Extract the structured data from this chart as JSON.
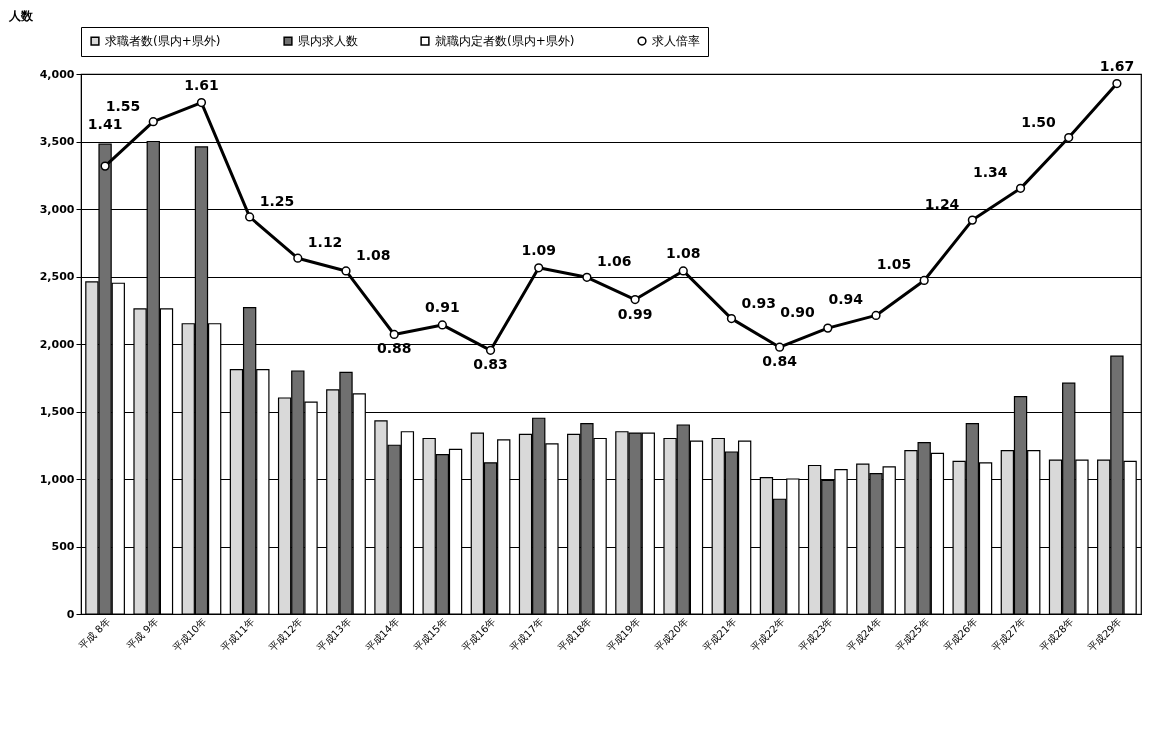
{
  "chart_data": {
    "type": "bar",
    "ylabel": "人数",
    "categories": [
      "平成 8年",
      "平成 9年",
      "平成10年",
      "平成11年",
      "平成12年",
      "平成13年",
      "平成14年",
      "平成15年",
      "平成16年",
      "平成17年",
      "平成18年",
      "平成19年",
      "平成20年",
      "平成21年",
      "平成22年",
      "平成23年",
      "平成24年",
      "平成25年",
      "平成26年",
      "平成27年",
      "平成28年",
      "平成29年"
    ],
    "series": [
      {
        "name": "求職者数(県内+県外)",
        "color": "#d9d9d9",
        "values": [
          2460,
          2260,
          2150,
          1810,
          1600,
          1660,
          1430,
          1300,
          1340,
          1330,
          1330,
          1350,
          1300,
          1300,
          1010,
          1100,
          1110,
          1210,
          1130,
          1210,
          1140,
          1140
        ]
      },
      {
        "name": "県内求人数",
        "color": "#707070",
        "values": [
          3480,
          3500,
          3460,
          2270,
          1800,
          1790,
          1250,
          1180,
          1120,
          1450,
          1410,
          1340,
          1400,
          1200,
          850,
          990,
          1040,
          1270,
          1410,
          1610,
          1710,
          1910
        ]
      },
      {
        "name": "就職内定者数(県内+県外)",
        "color": "#ffffff",
        "values": [
          2450,
          2260,
          2150,
          1810,
          1570,
          1630,
          1350,
          1220,
          1290,
          1260,
          1300,
          1340,
          1280,
          1280,
          1000,
          1070,
          1090,
          1190,
          1120,
          1210,
          1140,
          1130
        ]
      },
      {
        "name": "求人倍率",
        "color": "#000000",
        "type": "line",
        "axis": "y2",
        "values": [
          1.41,
          1.55,
          1.61,
          1.25,
          1.12,
          1.08,
          0.88,
          0.91,
          0.83,
          1.09,
          1.06,
          0.99,
          1.08,
          0.93,
          0.84,
          0.9,
          0.94,
          1.05,
          1.24,
          1.34,
          1.5,
          1.67
        ],
        "value_labels": [
          "1.41",
          "1.55",
          "1.61",
          "1.25",
          "1.12",
          "1.08",
          "0.88",
          "0.91",
          "0.83",
          "1.09",
          "1.06",
          "0.99",
          "1.08",
          "0.93",
          "0.84",
          "0.90",
          "0.94",
          "1.05",
          "1.24",
          "1.34",
          "1.50",
          "1.67"
        ]
      }
    ],
    "ylim": [
      0,
      4000
    ],
    "yticks": [
      0,
      {
        "value": 500,
        "label": "500"
      },
      {
        "value": 1000,
        "label": "1,000"
      },
      {
        "value": 1500,
        "label": "1,500"
      },
      {
        "value": 2000,
        "label": "2,000"
      },
      {
        "value": 2500,
        "label": "2,500"
      },
      {
        "value": 3000,
        "label": "3,000"
      },
      {
        "value": 3500,
        "label": "3,500"
      },
      {
        "value": 4000,
        "label": "4,000"
      }
    ],
    "y2lim": [
      0,
      1.7
    ],
    "grid": "y",
    "legend": "top",
    "marker": "circle",
    "line_style": "solid"
  }
}
